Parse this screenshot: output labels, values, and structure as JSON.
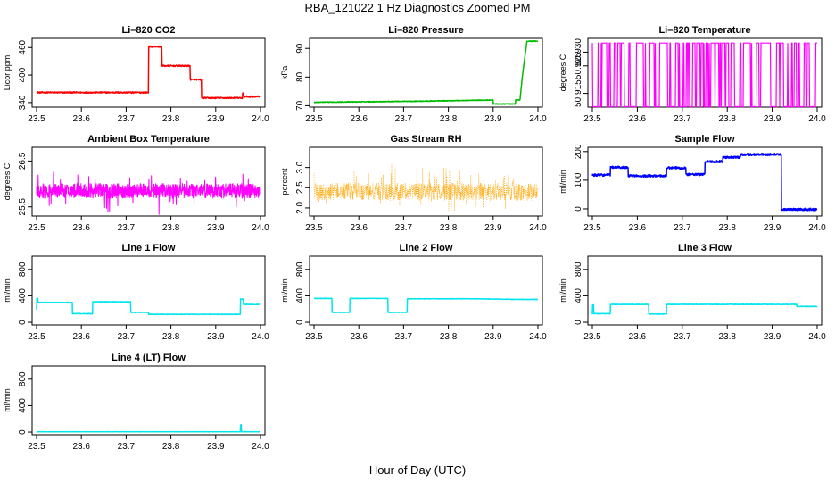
{
  "figure": {
    "title": "RBA_121022  1 Hz Diagnostics Zoomed PM",
    "xlabel": "Hour of Day (UTC)"
  },
  "chart_data": [
    {
      "type": "line",
      "title": "Li–820 CO2",
      "ylabel": "Licor ppm",
      "xlim": [
        23.5,
        24.0
      ],
      "ylim": [
        330,
        480
      ],
      "xticks": [
        "23.5",
        "23.6",
        "23.7",
        "23.8",
        "23.9",
        "24.0"
      ],
      "yticks": [
        {
          "v": 340,
          "label": "340"
        },
        {
          "v": 400,
          "label": "400"
        },
        {
          "v": 460,
          "label": "460"
        }
      ],
      "color": "#ff0000",
      "noise": 1.5,
      "series": [
        {
          "name": "CO2",
          "x": [
            23.5,
            23.75,
            23.75,
            23.78,
            23.78,
            23.8,
            23.8,
            23.843,
            23.843,
            23.868,
            23.868,
            23.96,
            23.96,
            23.962,
            23.962,
            24.0
          ],
          "y": [
            362,
            362,
            462,
            462,
            420,
            420,
            420,
            420,
            390,
            390,
            350,
            350,
            360,
            360,
            353,
            353
          ]
        }
      ]
    },
    {
      "type": "line",
      "title": "Li–820 Pressure",
      "ylabel": "kPa",
      "xlim": [
        23.5,
        24.0
      ],
      "ylim": [
        69.5,
        93.5
      ],
      "xticks": [
        "23.5",
        "23.6",
        "23.7",
        "23.8",
        "23.9",
        "24.0"
      ],
      "yticks": [
        {
          "v": 70,
          "label": "70"
        },
        {
          "v": 80,
          "label": "80"
        },
        {
          "v": 90,
          "label": "90"
        }
      ],
      "color": "#00bb00",
      "noise": 0.12,
      "series": [
        {
          "name": "Pressure",
          "x": [
            23.5,
            23.75,
            23.9,
            23.9,
            23.95,
            23.95,
            23.96,
            23.965,
            23.975,
            23.975,
            24.0
          ],
          "y": [
            71.2,
            71.6,
            72.0,
            70.6,
            70.6,
            72.0,
            72.0,
            80.0,
            92.0,
            92.5,
            92.5
          ]
        }
      ]
    },
    {
      "type": "line",
      "title": "Li–820 Temperature",
      "ylabel": "degrees C",
      "xlim": [
        23.5,
        24.0
      ],
      "ylim": [
        50.91,
        50.935
      ],
      "xticks": [
        "23.5",
        "23.6",
        "23.7",
        "23.8",
        "23.9",
        "24.0"
      ],
      "yticks": [
        {
          "v": 50.915,
          "label": "50.915"
        },
        {
          "v": 50.925,
          "label": "50.925"
        },
        {
          "v": 50.93,
          "label": "50.930"
        }
      ],
      "color": "#ff00ff",
      "quantized": {
        "high": 50.9333,
        "low": 50.91,
        "switch_prob": 0.18
      },
      "series": [
        {
          "name": "Temperature",
          "x": [
            23.5,
            24.0
          ],
          "y": [
            50.9333,
            50.9333
          ]
        }
      ]
    },
    {
      "type": "line",
      "title": "Ambient Box Temperature",
      "ylabel": "degrees C",
      "xlim": [
        23.5,
        24.0
      ],
      "ylim": [
        25.3,
        26.8
      ],
      "xticks": [
        "23.5",
        "23.6",
        "23.7",
        "23.8",
        "23.9",
        "24.0"
      ],
      "yticks": [
        {
          "v": 25.5,
          "label": "25.5"
        },
        {
          "v": 26.5,
          "label": "26.5"
        }
      ],
      "color": "#ff00ff",
      "noise": 0.16,
      "spike": 0.4,
      "series": [
        {
          "name": "Ambient",
          "x": [
            23.5,
            24.0
          ],
          "y": [
            25.85,
            25.85
          ]
        }
      ]
    },
    {
      "type": "scatter",
      "title": "Gas Stream RH",
      "ylabel": "percent",
      "xlim": [
        23.5,
        24.0
      ],
      "ylim": [
        1.8,
        3.5
      ],
      "xticks": [
        "23.5",
        "23.6",
        "23.7",
        "23.8",
        "23.9",
        "24.0"
      ],
      "yticks": [
        {
          "v": 2.0,
          "label": "2.0"
        },
        {
          "v": 2.5,
          "label": "2.5"
        },
        {
          "v": 3.0,
          "label": "3.0"
        }
      ],
      "color": "#ffa500",
      "noise": 0.22,
      "spike": 0.5,
      "series": [
        {
          "name": "RH",
          "x": [
            23.5,
            24.0
          ],
          "y": [
            2.4,
            2.4
          ]
        }
      ]
    },
    {
      "type": "line",
      "title": "Sample Flow",
      "ylabel": "ml/min",
      "xlim": [
        23.5,
        24.0
      ],
      "ylim": [
        -25,
        215
      ],
      "xticks": [
        "23.5",
        "23.6",
        "23.7",
        "23.8",
        "23.9",
        "24.0"
      ],
      "yticks": [
        {
          "v": 0,
          "label": "0"
        },
        {
          "v": 100,
          "label": "100"
        },
        {
          "v": 200,
          "label": "200"
        }
      ],
      "color": "#0000ff",
      "noise": 4,
      "series": [
        {
          "name": "SampleFlow",
          "x": [
            23.5,
            23.54,
            23.54,
            23.58,
            23.58,
            23.665,
            23.665,
            23.708,
            23.708,
            23.75,
            23.75,
            23.79,
            23.79,
            23.83,
            23.83,
            23.92,
            23.92,
            24.0
          ],
          "y": [
            118,
            118,
            145,
            145,
            115,
            115,
            143,
            143,
            120,
            120,
            165,
            165,
            180,
            180,
            190,
            190,
            -2,
            -2
          ]
        }
      ]
    },
    {
      "type": "line",
      "title": "Line 1 Flow",
      "ylabel": "ml/min",
      "xlim": [
        23.5,
        24.0
      ],
      "ylim": [
        -40,
        1000
      ],
      "xticks": [
        "23.5",
        "23.6",
        "23.7",
        "23.8",
        "23.9",
        "24.0"
      ],
      "yticks": [
        {
          "v": 0,
          "label": "0"
        },
        {
          "v": 400,
          "label": "400"
        },
        {
          "v": 800,
          "label": "800"
        }
      ],
      "color": "#00e5ee",
      "noise": 4,
      "series": [
        {
          "name": "Line1",
          "x": [
            23.5,
            23.5,
            23.503,
            23.503,
            23.58,
            23.58,
            23.625,
            23.625,
            23.71,
            23.71,
            23.75,
            23.75,
            23.955,
            23.955,
            23.962,
            23.962,
            24.0
          ],
          "y": [
            190,
            360,
            360,
            300,
            300,
            130,
            130,
            310,
            310,
            150,
            150,
            120,
            120,
            350,
            350,
            270,
            270
          ]
        }
      ]
    },
    {
      "type": "line",
      "title": "Line 2 Flow",
      "ylabel": "ml/min",
      "xlim": [
        23.5,
        24.0
      ],
      "ylim": [
        -40,
        1000
      ],
      "xticks": [
        "23.5",
        "23.6",
        "23.7",
        "23.8",
        "23.9",
        "24.0"
      ],
      "yticks": [
        {
          "v": 0,
          "label": "0"
        },
        {
          "v": 400,
          "label": "400"
        },
        {
          "v": 800,
          "label": "800"
        }
      ],
      "color": "#00e5ee",
      "noise": 3,
      "series": [
        {
          "name": "Line2",
          "x": [
            23.5,
            23.54,
            23.54,
            23.58,
            23.58,
            23.665,
            23.665,
            23.708,
            23.708,
            23.85,
            23.96,
            24.0
          ],
          "y": [
            360,
            360,
            150,
            150,
            360,
            360,
            150,
            150,
            355,
            355,
            345,
            345
          ]
        }
      ]
    },
    {
      "type": "line",
      "title": "Line 3 Flow",
      "ylabel": "ml/min",
      "xlim": [
        23.5,
        24.0
      ],
      "ylim": [
        -40,
        1000
      ],
      "xticks": [
        "23.5",
        "23.6",
        "23.7",
        "23.8",
        "23.9",
        "24.0"
      ],
      "yticks": [
        {
          "v": 0,
          "label": "0"
        },
        {
          "v": 400,
          "label": "400"
        },
        {
          "v": 800,
          "label": "800"
        }
      ],
      "color": "#00e5ee",
      "noise": 4,
      "series": [
        {
          "name": "Line3",
          "x": [
            23.5,
            23.5,
            23.503,
            23.503,
            23.54,
            23.54,
            23.625,
            23.625,
            23.665,
            23.665,
            23.955,
            23.955,
            24.0
          ],
          "y": [
            120,
            260,
            260,
            130,
            130,
            270,
            270,
            125,
            125,
            270,
            270,
            240,
            240
          ]
        }
      ]
    },
    {
      "type": "line",
      "title": "Line 4 (LT) Flow",
      "ylabel": "ml/min",
      "xlim": [
        23.5,
        24.0
      ],
      "ylim": [
        -40,
        1000
      ],
      "xticks": [
        "23.5",
        "23.6",
        "23.7",
        "23.8",
        "23.9",
        "24.0"
      ],
      "yticks": [
        {
          "v": 0,
          "label": "0"
        },
        {
          "v": 400,
          "label": "400"
        },
        {
          "v": 800,
          "label": "800"
        }
      ],
      "color": "#00e5ee",
      "noise": 1.5,
      "series": [
        {
          "name": "Line4",
          "x": [
            23.5,
            23.955,
            23.955,
            23.957,
            23.957,
            24.0
          ],
          "y": [
            5,
            5,
            110,
            110,
            5,
            5
          ]
        }
      ]
    }
  ]
}
